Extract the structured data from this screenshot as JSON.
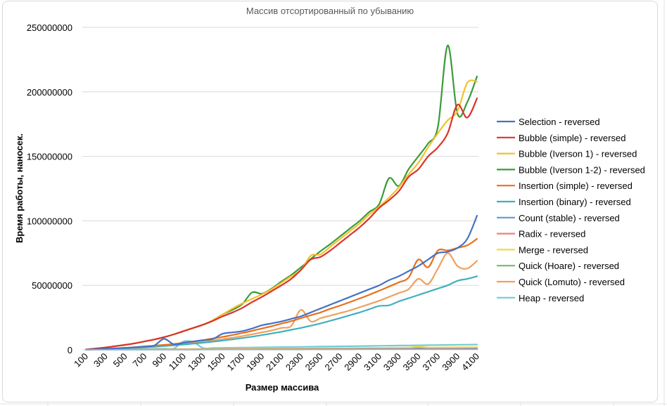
{
  "chart_data": {
    "type": "line",
    "title": "Массив отсортированный по убыванию",
    "xlabel": "Размер массива",
    "ylabel": "Время работы, наносек.",
    "x": [
      100,
      200,
      300,
      400,
      500,
      600,
      700,
      800,
      900,
      1000,
      1100,
      1200,
      1300,
      1400,
      1500,
      1600,
      1700,
      1800,
      1900,
      2000,
      2100,
      2200,
      2300,
      2400,
      2500,
      2600,
      2700,
      2800,
      2900,
      3000,
      3100,
      3200,
      3300,
      3400,
      3500,
      3600,
      3700,
      3800,
      3900,
      4000,
      4100
    ],
    "x_tick_labels": [
      "100",
      "300",
      "500",
      "700",
      "900",
      "1100",
      "1300",
      "1500",
      "1700",
      "1900",
      "2100",
      "2300",
      "2500",
      "2700",
      "2900",
      "3100",
      "3300",
      "3500",
      "3700",
      "3900",
      "4100"
    ],
    "y_tick_labels": [
      "0",
      "50000000",
      "100000000",
      "150000000",
      "200000000",
      "250000000"
    ],
    "ylim": [
      0,
      250000000
    ],
    "grid": "horizontal",
    "legend_position": "right",
    "series": [
      {
        "name": "Selection - reversed",
        "color": "#4472c4",
        "values": [
          100000,
          400000,
          700000,
          1100000,
          1500000,
          2000000,
          2600000,
          3300000,
          8500000,
          4200000,
          5500000,
          6500000,
          7500000,
          8500000,
          12500000,
          13500000,
          14500000,
          16500000,
          19000000,
          20500000,
          22000000,
          24000000,
          26000000,
          29000000,
          32000000,
          35000000,
          38000000,
          41000000,
          44000000,
          47000000,
          50000000,
          54000000,
          57000000,
          61000000,
          65000000,
          70000000,
          75000000,
          76000000,
          79000000,
          86000000,
          104000000
        ]
      },
      {
        "name": "Bubble (simple) - reversed",
        "color": "#d9342b",
        "values": [
          200000,
          1000000,
          1800000,
          2800000,
          3800000,
          5000000,
          6500000,
          8000000,
          9800000,
          12000000,
          14500000,
          17000000,
          19500000,
          22500000,
          26000000,
          29000000,
          32500000,
          37000000,
          41000000,
          45500000,
          50000000,
          55000000,
          62000000,
          70000000,
          72000000,
          77000000,
          83000000,
          89000000,
          95000000,
          102000000,
          110000000,
          116000000,
          123000000,
          134000000,
          140000000,
          150000000,
          157000000,
          168000000,
          190000000,
          180000000,
          195000000
        ]
      },
      {
        "name": "Bubble (Iverson 1) - reversed",
        "color": "#f2c12e",
        "values": [
          200000,
          1000000,
          1800000,
          2800000,
          3800000,
          5000000,
          6500000,
          8000000,
          9800000,
          12000000,
          14500000,
          17000000,
          19500000,
          23000000,
          27500000,
          32000000,
          36000000,
          39500000,
          43000000,
          47000000,
          52000000,
          57000000,
          62000000,
          73000000,
          74000000,
          80000000,
          86000000,
          92000000,
          98000000,
          105000000,
          111000000,
          118000000,
          126000000,
          136000000,
          145000000,
          157000000,
          168000000,
          178000000,
          185000000,
          207000000,
          208000000
        ]
      },
      {
        "name": "Bubble (Iverson 1-2) - reversed",
        "color": "#3a9b3a",
        "values": [
          200000,
          1000000,
          1800000,
          2800000,
          3800000,
          5000000,
          6500000,
          8000000,
          9800000,
          12000000,
          14500000,
          17000000,
          19500000,
          23000000,
          27500000,
          31000000,
          35500000,
          44500000,
          43500000,
          47500000,
          53000000,
          58000000,
          64000000,
          70500000,
          76500000,
          82000000,
          88000000,
          94000000,
          100000000,
          107000000,
          113000000,
          133000000,
          127000000,
          140000000,
          150000000,
          160000000,
          173000000,
          236000000,
          183000000,
          192000000,
          212000000
        ]
      },
      {
        "name": "Insertion (simple) - reversed",
        "color": "#e8701a",
        "values": [
          100000,
          400000,
          700000,
          1100000,
          1500000,
          2000000,
          2600000,
          3200000,
          3800000,
          4500000,
          5500000,
          6500000,
          7500000,
          8800000,
          10000000,
          11500000,
          13000000,
          14700000,
          16500000,
          18300000,
          20300000,
          22200000,
          24500000,
          26800000,
          29000000,
          31800000,
          34300000,
          37000000,
          39800000,
          42700000,
          45800000,
          49000000,
          52300000,
          56000000,
          70000000,
          64000000,
          77000000,
          77000000,
          79000000,
          81000000,
          86000000
        ]
      },
      {
        "name": "Insertion (binary) - reversed",
        "color": "#3fb0bf",
        "values": [
          50000,
          250000,
          500000,
          800000,
          1100000,
          1500000,
          1900000,
          2400000,
          2900000,
          3500000,
          4100000,
          4800000,
          5500000,
          6300000,
          7200000,
          8100000,
          9100000,
          10200000,
          11400000,
          12700000,
          14000000,
          15500000,
          17000000,
          18700000,
          20500000,
          22500000,
          24600000,
          26800000,
          29000000,
          31500000,
          34000000,
          34500000,
          37500000,
          40000000,
          42500000,
          45000000,
          47500000,
          50000000,
          53500000,
          55000000,
          57000000
        ]
      },
      {
        "name": "Count (stable) - reversed",
        "color": "#5b9bd5",
        "values": [
          20000,
          30000,
          40000,
          50000,
          60000,
          70000,
          80000,
          90000,
          100000,
          110000,
          120000,
          130000,
          140000,
          150000,
          160000,
          170000,
          180000,
          190000,
          200000,
          210000,
          220000,
          230000,
          240000,
          250000,
          260000,
          270000,
          280000,
          290000,
          300000,
          310000,
          320000,
          330000,
          340000,
          350000,
          360000,
          370000,
          380000,
          390000,
          400000,
          410000,
          420000
        ]
      },
      {
        "name": "Radix - reversed",
        "color": "#f08080",
        "values": [
          30000,
          50000,
          70000,
          90000,
          110000,
          130000,
          150000,
          170000,
          190000,
          210000,
          230000,
          250000,
          270000,
          290000,
          310000,
          330000,
          350000,
          370000,
          390000,
          410000,
          430000,
          450000,
          470000,
          490000,
          510000,
          530000,
          550000,
          570000,
          590000,
          610000,
          630000,
          650000,
          670000,
          690000,
          710000,
          730000,
          750000,
          770000,
          790000,
          810000,
          830000
        ]
      },
      {
        "name": "Merge - reversed",
        "color": "#f7d44c",
        "values": [
          50000,
          100000,
          150000,
          200000,
          250000,
          300000,
          350000,
          400000,
          450000,
          500000,
          550000,
          600000,
          650000,
          700000,
          750000,
          800000,
          850000,
          900000,
          950000,
          1000000,
          1050000,
          1100000,
          1150000,
          1200000,
          1250000,
          1300000,
          1350000,
          1400000,
          1450000,
          1500000,
          1550000,
          1600000,
          1650000,
          1700000,
          2500000,
          1800000,
          1850000,
          1900000,
          1950000,
          2000000,
          2050000
        ]
      },
      {
        "name": "Quick (Hoare) - reversed",
        "color": "#6abf69",
        "values": [
          40000,
          80000,
          120000,
          160000,
          200000,
          240000,
          280000,
          320000,
          360000,
          400000,
          440000,
          480000,
          520000,
          560000,
          600000,
          640000,
          680000,
          720000,
          760000,
          800000,
          840000,
          880000,
          920000,
          960000,
          1000000,
          1040000,
          1080000,
          1120000,
          1160000,
          1200000,
          1240000,
          1280000,
          1320000,
          1360000,
          1400000,
          1440000,
          1480000,
          1520000,
          1560000,
          1600000,
          1640000
        ]
      },
      {
        "name": "Quick (Lomuto) - reversed",
        "color": "#f0a060",
        "values": [
          80000,
          300000,
          600000,
          900000,
          1300000,
          1700000,
          2200000,
          2700000,
          3200000,
          4000000,
          4800000,
          5600000,
          6400000,
          7300000,
          8300000,
          9400000,
          10600000,
          12000000,
          13500000,
          15000000,
          17000000,
          18500000,
          31000000,
          22000000,
          24500000,
          26500000,
          28500000,
          30500000,
          33000000,
          35500000,
          38000000,
          41000000,
          44000000,
          47000000,
          55000000,
          51000000,
          63000000,
          75000000,
          65000000,
          63000000,
          69000000
        ]
      },
      {
        "name": "Heap - reversed",
        "color": "#70cdd6",
        "values": [
          100000,
          200000,
          300000,
          400000,
          500000,
          600000,
          700000,
          800000,
          900000,
          1000000,
          6500000,
          6000000,
          1300000,
          1400000,
          1500000,
          1600000,
          1700000,
          1800000,
          1900000,
          2000000,
          2100000,
          2200000,
          2300000,
          2400000,
          2500000,
          2600000,
          2700000,
          2800000,
          2900000,
          3000000,
          3100000,
          3200000,
          3300000,
          3400000,
          3500000,
          3600000,
          3700000,
          3800000,
          3900000,
          4000000,
          4100000
        ]
      }
    ]
  }
}
